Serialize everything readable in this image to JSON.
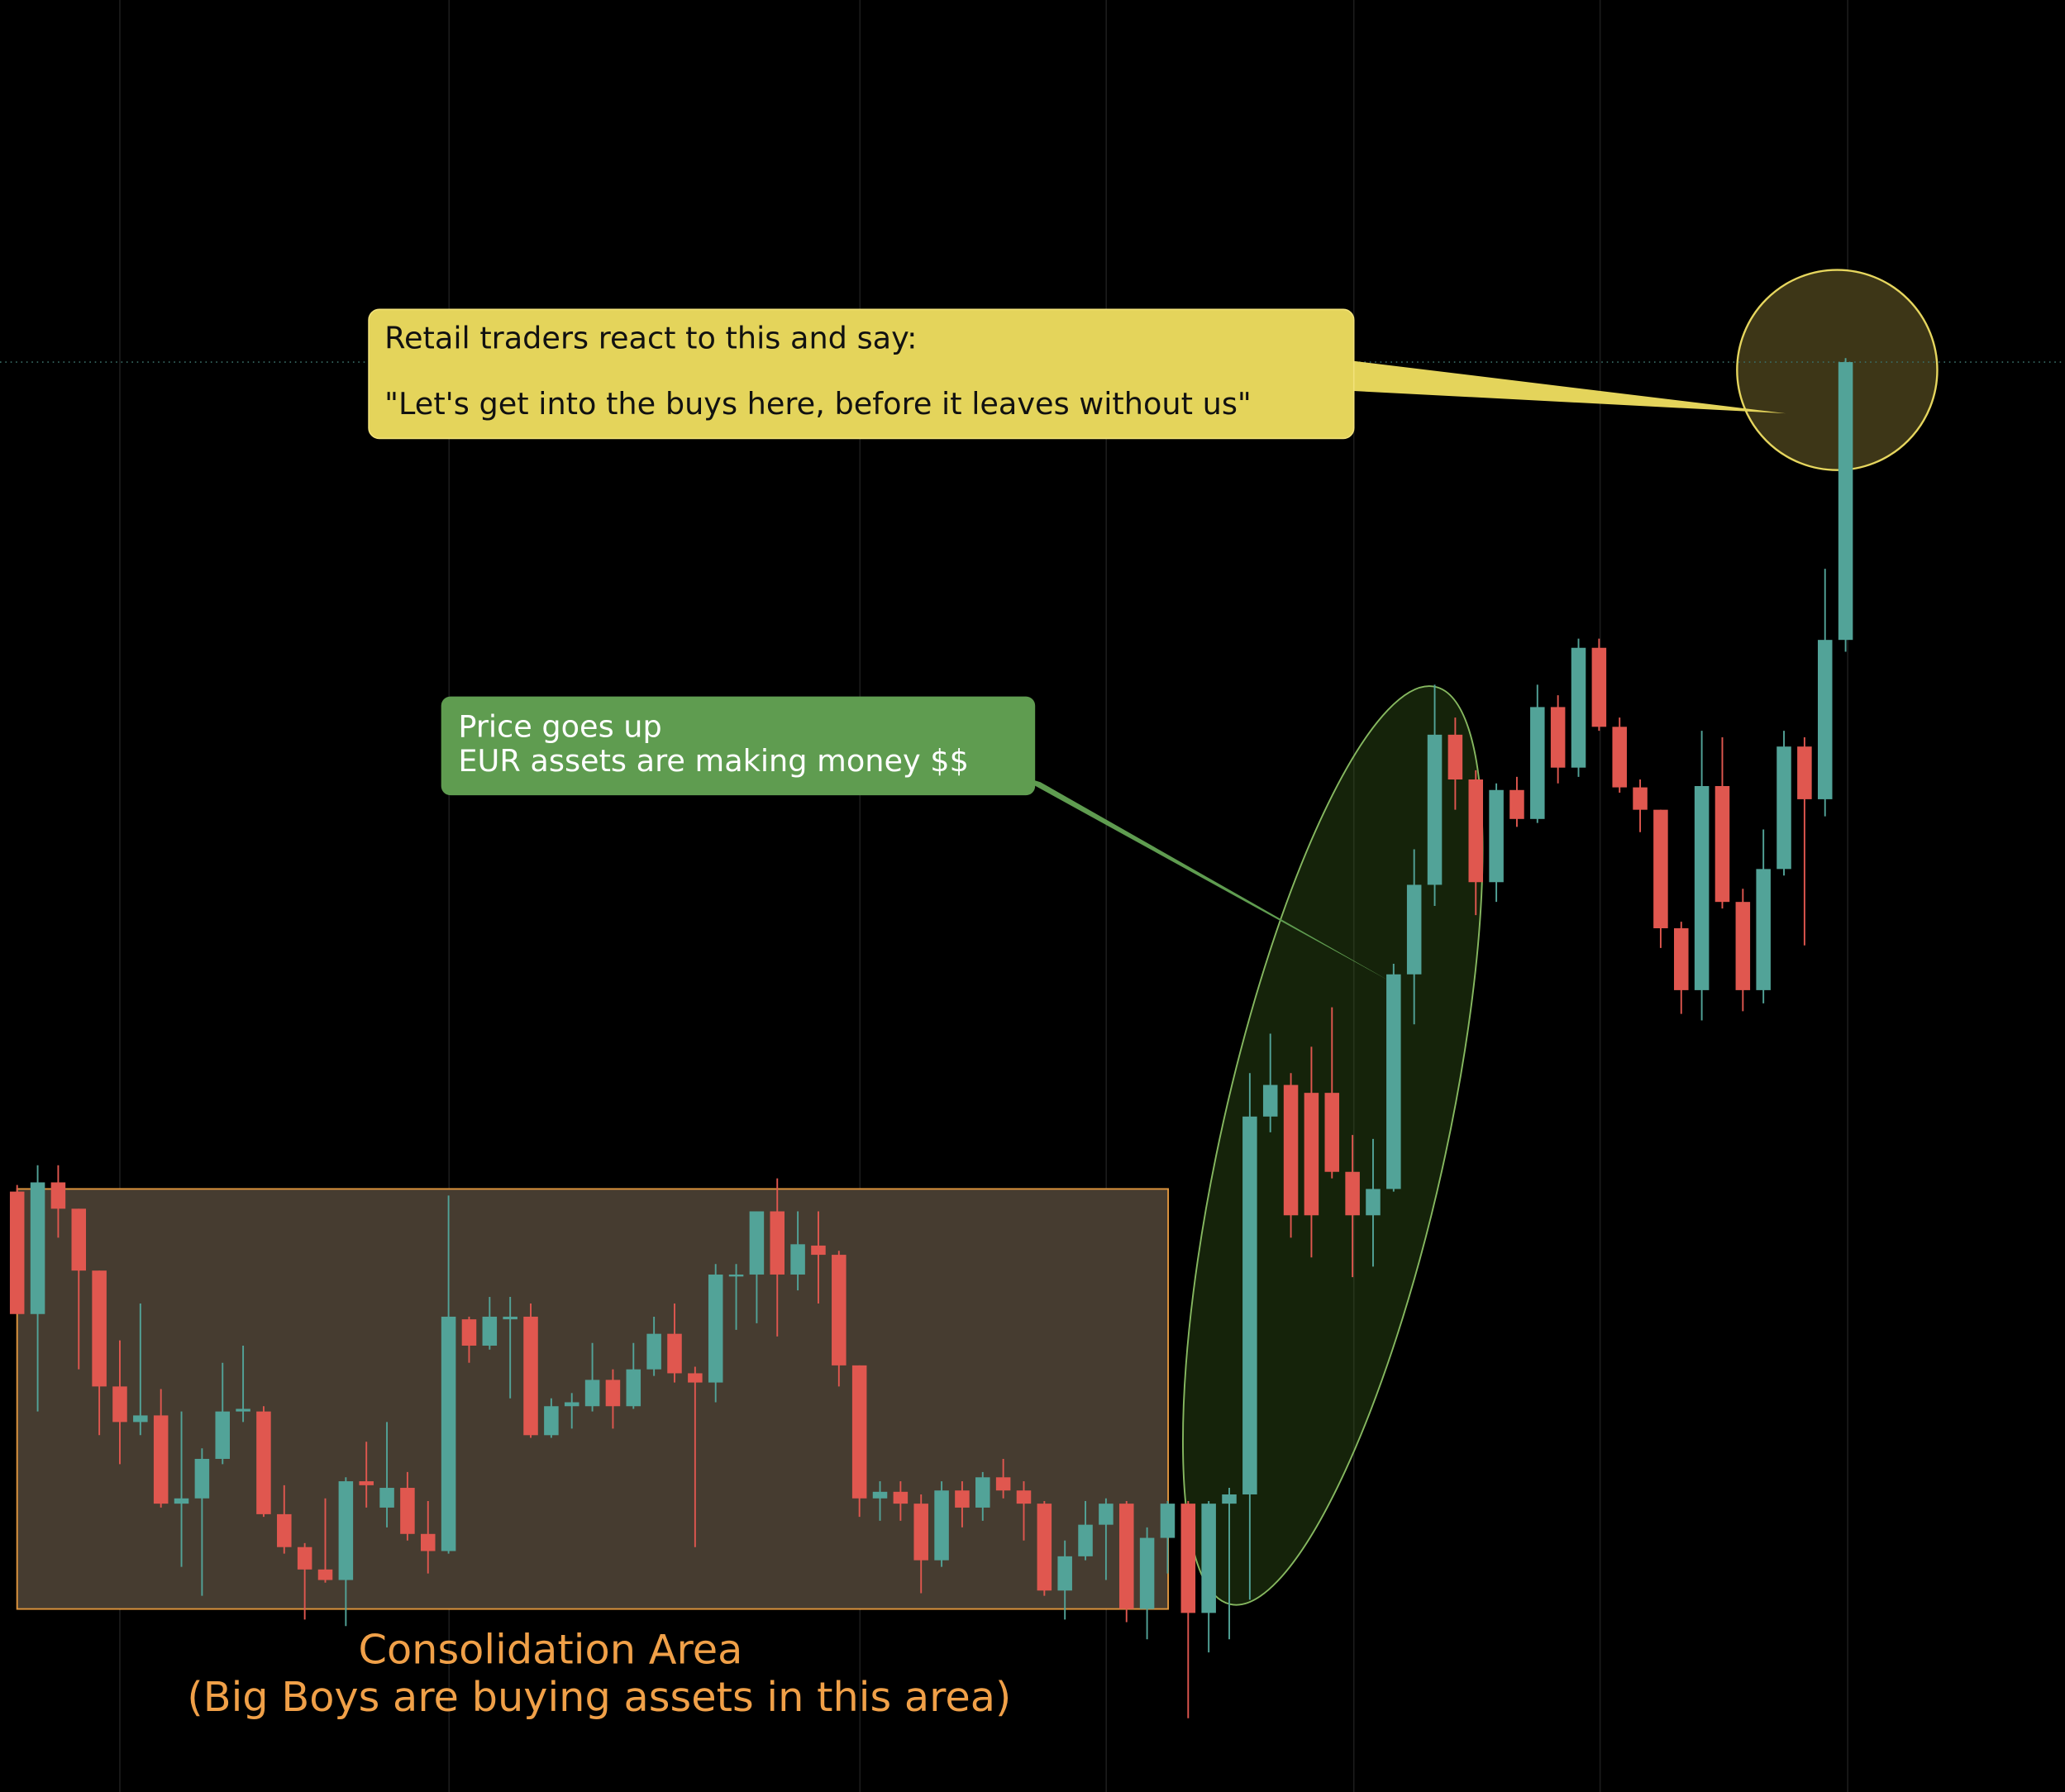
{
  "chart_data": {
    "type": "candlestick",
    "open": [
      456,
      363,
      463,
      443,
      396,
      308,
      281,
      286,
      219,
      223,
      253,
      289,
      289,
      211,
      186,
      169,
      161,
      236,
      216,
      231,
      196,
      183,
      359,
      339,
      359,
      361,
      271,
      293,
      293,
      313,
      293,
      321,
      348,
      318,
      311,
      393,
      393,
      441,
      393,
      415,
      408,
      324,
      223,
      228,
      219,
      176,
      229,
      216,
      239,
      229,
      219,
      153,
      179,
      203,
      219,
      139,
      193,
      219,
      136,
      219,
      226,
      513,
      537,
      531,
      531,
      471,
      438,
      458,
      621,
      689,
      803,
      769,
      691,
      761,
      739,
      824,
      778,
      869,
      809,
      763,
      746,
      656,
      609,
      764,
      676,
      609,
      701,
      794,
      754,
      875
    ],
    "high": [
      461,
      476,
      476,
      443,
      396,
      343,
      371,
      306,
      289,
      261,
      326,
      339,
      293,
      233,
      189,
      223,
      239,
      266,
      281,
      243,
      221,
      453,
      361,
      376,
      376,
      371,
      299,
      303,
      341,
      321,
      341,
      361,
      371,
      323,
      401,
      401,
      441,
      466,
      441,
      441,
      411,
      324,
      236,
      236,
      226,
      236,
      236,
      243,
      253,
      236,
      221,
      191,
      221,
      223,
      221,
      201,
      221,
      221,
      221,
      231,
      546,
      576,
      546,
      566,
      596,
      499,
      496,
      629,
      716,
      841,
      816,
      776,
      766,
      771,
      841,
      833,
      876,
      876,
      816,
      769,
      746,
      661,
      806,
      801,
      686,
      731,
      806,
      801,
      929,
      1089
    ],
    "low": [
      363,
      289,
      421,
      321,
      271,
      249,
      271,
      216,
      171,
      149,
      249,
      281,
      209,
      181,
      131,
      159,
      126,
      216,
      201,
      191,
      166,
      181,
      326,
      336,
      299,
      269,
      269,
      276,
      289,
      276,
      291,
      316,
      311,
      186,
      296,
      351,
      356,
      346,
      381,
      371,
      308,
      209,
      206,
      206,
      151,
      171,
      201,
      206,
      223,
      191,
      149,
      131,
      176,
      161,
      129,
      116,
      166,
      56,
      106,
      116,
      146,
      501,
      421,
      406,
      466,
      391,
      399,
      456,
      583,
      673,
      746,
      666,
      676,
      733,
      736,
      766,
      771,
      806,
      759,
      729,
      641,
      591,
      586,
      671,
      593,
      599,
      696,
      643,
      741,
      866
    ],
    "close": [
      363,
      463,
      443,
      396,
      308,
      281,
      286,
      219,
      223,
      253,
      289,
      291,
      211,
      186,
      169,
      161,
      236,
      233,
      231,
      196,
      183,
      361,
      339,
      361,
      361,
      271,
      293,
      296,
      313,
      293,
      321,
      348,
      318,
      311,
      393,
      393,
      441,
      393,
      416,
      408,
      324,
      223,
      228,
      219,
      176,
      229,
      216,
      239,
      229,
      219,
      153,
      179,
      203,
      219,
      139,
      193,
      219,
      136,
      219,
      226,
      513,
      537,
      438,
      438,
      471,
      438,
      458,
      621,
      689,
      803,
      769,
      691,
      761,
      739,
      824,
      778,
      869,
      809,
      763,
      746,
      656,
      609,
      764,
      676,
      609,
      701,
      794,
      754,
      875,
      1086
    ],
    "up_color": "#52a398",
    "down_color": "#e0574f",
    "ylim": [
      0,
      1361
    ],
    "annotations": {
      "retail": [
        "Retail traders react to this and say:",
        "\"Let's get into the buys here, before it leaves without us\""
      ],
      "price": [
        "Price goes up",
        "EUR assets are making money $$"
      ],
      "consolidation": [
        "Consolidation Area",
        "(Big Boys are buying assets in this area)"
      ]
    }
  }
}
